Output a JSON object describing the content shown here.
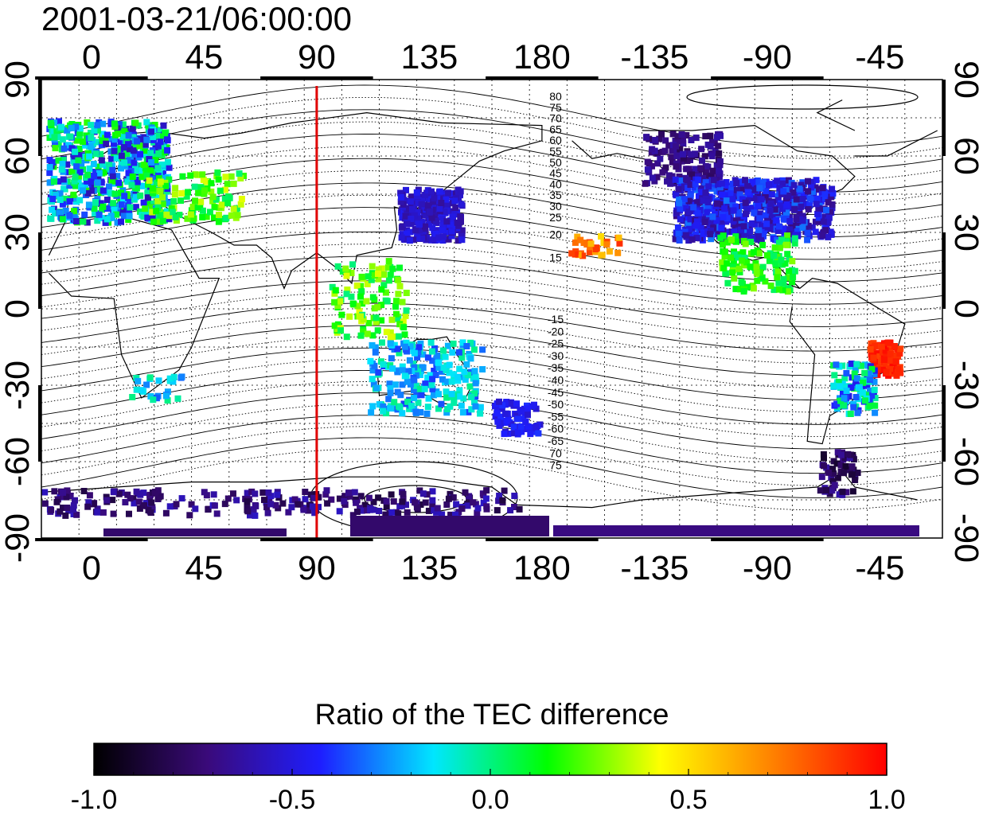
{
  "timestamp": "2001-03-21/06:00:00",
  "colorbar_title": "Ratio of the TEC difference",
  "colorbar": {
    "min": -1.0,
    "max": 1.0,
    "tick_labels": [
      "-1.0",
      "-0.5",
      "0.0",
      "0.5",
      "1.0"
    ],
    "colors": [
      "#000000",
      "#3a0a7a",
      "#1e1eff",
      "#00e6ff",
      "#00ff00",
      "#ffff00",
      "#ff8000",
      "#ff0000"
    ]
  },
  "map": {
    "x_tick_labels_top": [
      "0",
      "45",
      "90",
      "135",
      "180",
      "-135",
      "-90",
      "-45"
    ],
    "x_tick_labels_bottom": [
      "0",
      "45",
      "90",
      "135",
      "180",
      "-135",
      "-90",
      "-45"
    ],
    "y_tick_labels_left": [
      "90",
      "60",
      "30",
      "0",
      "-30",
      "-60",
      "-90"
    ],
    "y_tick_labels_right": [
      "90",
      "60",
      "30",
      "0",
      "-30",
      "-60",
      "-90"
    ],
    "reference_longitude": 90,
    "reference_line_color": "#e00000",
    "lon_start": -20,
    "lon_range": 360,
    "contour_labels_north": [
      "80",
      "75",
      "70",
      "65",
      "60",
      "55",
      "50",
      "45",
      "40",
      "35",
      "30",
      "25",
      "20",
      "15"
    ],
    "contour_labels_south": [
      "-15",
      "-20",
      "-25",
      "-30",
      "-35",
      "-40",
      "-45",
      "-50",
      "-55",
      "-60",
      "-65",
      "70",
      "75"
    ]
  }
}
